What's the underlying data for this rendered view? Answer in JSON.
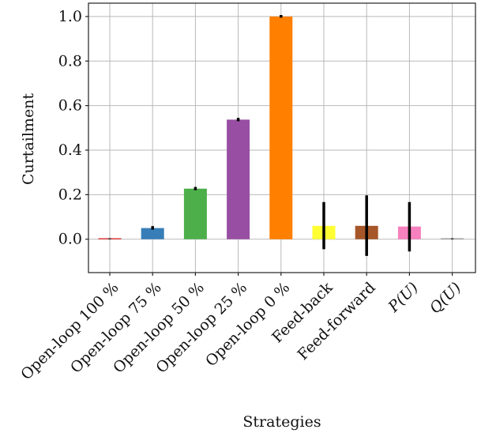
{
  "chart_data": {
    "type": "bar",
    "xlabel": "Strategies",
    "ylabel": "Curtailment",
    "ylim": [
      -0.15,
      1.06
    ],
    "yticks": [
      "0.0",
      "0.2",
      "0.4",
      "0.6",
      "0.8",
      "1.0"
    ],
    "ytick_values": [
      0,
      0.2,
      0.4,
      0.6,
      0.8,
      1.0
    ],
    "grid": true,
    "categories": [
      "Open-loop 100 %",
      "Open-loop 75 %",
      "Open-loop 50 %",
      "Open-loop 25 %",
      "Open-loop 0 %",
      "Feed-back",
      "Feed-forward",
      "P(U)",
      "Q(U)"
    ],
    "values": [
      0.0,
      0.05,
      0.227,
      0.537,
      1.0,
      0.06,
      0.06,
      0.057,
      0.0
    ],
    "error_low": [
      0.0,
      0.043,
      0.22,
      0.53,
      0.995,
      -0.045,
      -0.075,
      -0.055,
      0.0
    ],
    "error_high": [
      0.002,
      0.057,
      0.233,
      0.543,
      1.005,
      0.165,
      0.195,
      0.165,
      0.002
    ],
    "colors": [
      "#e41a1c",
      "#377eb8",
      "#4daf4a",
      "#984ea3",
      "#ff7f00",
      "#ffff33",
      "#a65628",
      "#f781bf",
      "#999999"
    ]
  }
}
